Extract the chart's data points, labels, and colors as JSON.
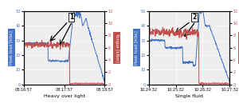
{
  "left": {
    "title": "Heavy over light",
    "label": "1",
    "xticks": [
      "08:16:57",
      "08:17:57",
      "08:18:57"
    ],
    "yleft_label": "Hook load [klbs]",
    "yright_label": "Torque [kNm]",
    "yleft_lim": [
      0,
      50
    ],
    "yright_lim": [
      0,
      12
    ],
    "yleft_ticks": [
      0,
      10,
      20,
      30,
      40,
      50
    ],
    "yright_ticks": [
      0,
      2,
      4,
      6,
      8,
      10,
      12
    ],
    "blue_color": "#4472C4",
    "red_color": "#C0504D",
    "background": "#f0f0f0"
  },
  "right": {
    "title": "Single fluid",
    "label": "2",
    "xticks": [
      "10:24:32",
      "10:25:32",
      "10:26:32",
      "10:27:32"
    ],
    "yleft_label": "Hook load [klbs]",
    "yright_label": "Torque [kNm]",
    "yleft_lim": [
      0,
      50
    ],
    "yright_lim": [
      0,
      12
    ],
    "yleft_ticks": [
      0,
      10,
      20,
      30,
      40,
      50
    ],
    "yright_ticks": [
      0,
      2,
      4,
      6,
      8,
      10,
      12
    ],
    "blue_color": "#4472C4",
    "red_color": "#C0504D",
    "background": "#f0f0f0"
  },
  "fig_bg": "#ffffff",
  "label_font": 3.8,
  "tick_font": 3.5,
  "title_font": 4.5,
  "line_width": 0.7
}
